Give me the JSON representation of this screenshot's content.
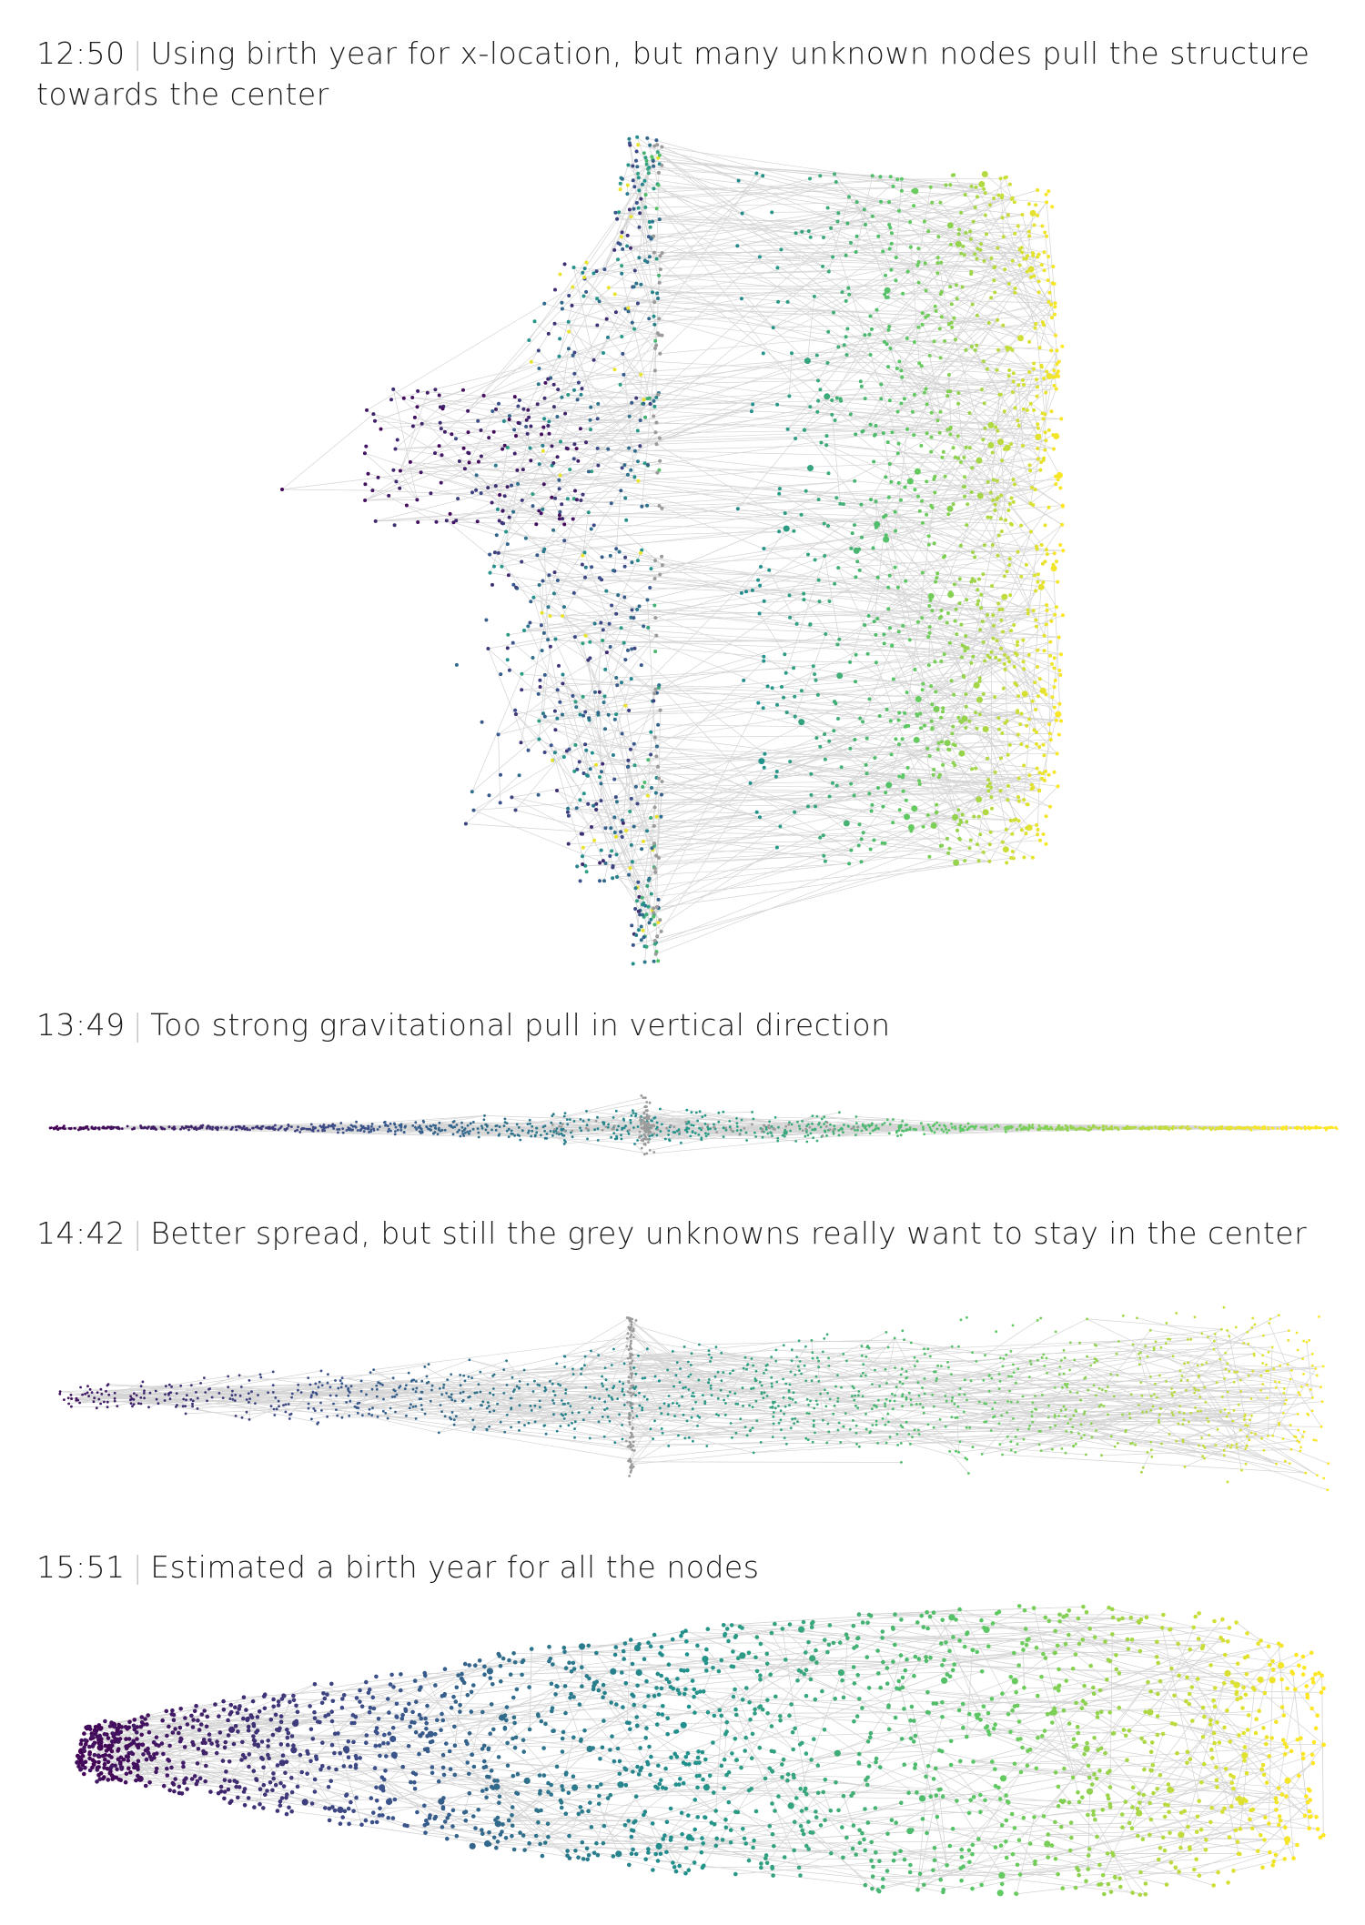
{
  "panels": [
    {
      "time": "12:50",
      "separator": "|",
      "text": "Using birth year for x-location, but many unknown nodes pull the structure towards  the center"
    },
    {
      "time": "13:49",
      "separator": "|",
      "text": "Too strong gravitational pull in vertical direction"
    },
    {
      "time": "14:42",
      "separator": "|",
      "text": "Better spread, but still the grey unknowns really want to stay in the center"
    },
    {
      "time": "15:51",
      "separator": "|",
      "text": "Estimated a birth year for all the nodes"
    }
  ],
  "colors": {
    "unknown_node": "#9a9a9a",
    "edge": "#d4d4d4",
    "gradient": [
      "#440154",
      "#3b528b",
      "#21918c",
      "#5ec962",
      "#fde725"
    ]
  }
}
